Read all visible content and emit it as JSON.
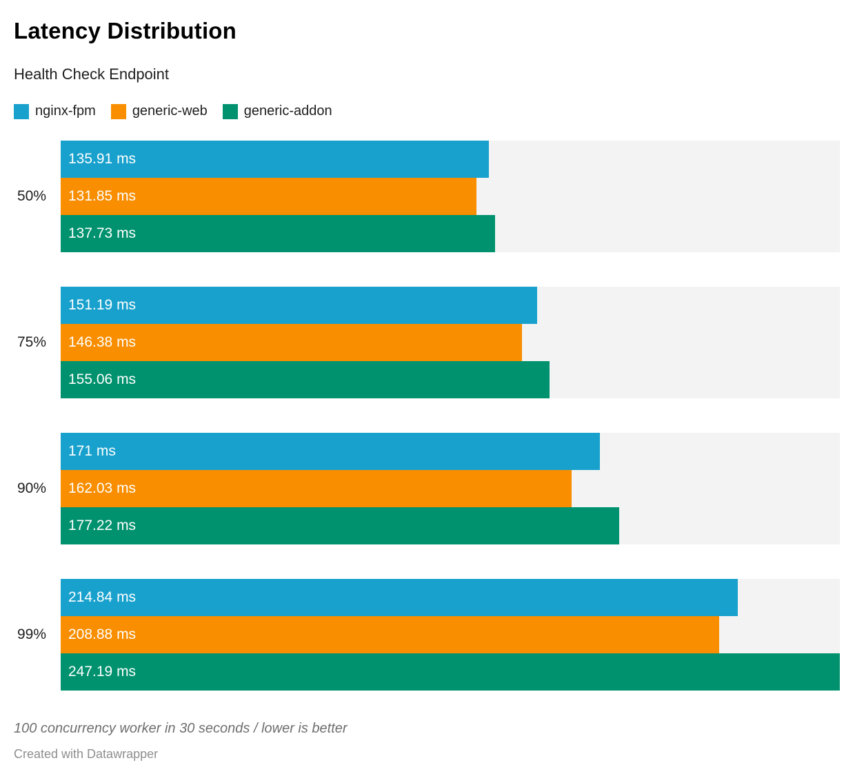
{
  "title": "Latency Distribution",
  "subtitle": "Health Check Endpoint",
  "legend": {
    "items": [
      {
        "label": "nginx-fpm",
        "color": "#18a1cd"
      },
      {
        "label": "generic-web",
        "color": "#f88e00"
      },
      {
        "label": "generic-addon",
        "color": "#00926e"
      }
    ]
  },
  "footer": {
    "note": "100 concurrency worker in 30 seconds / lower is better",
    "attribution": "Created with Datawrapper"
  },
  "chart_data": {
    "type": "bar",
    "orientation": "horizontal",
    "unit": "ms",
    "title": "Latency Distribution",
    "subtitle": "Health Check Endpoint",
    "categories": [
      "50%",
      "75%",
      "90%",
      "99%"
    ],
    "series": [
      {
        "name": "nginx-fpm",
        "color": "#18a1cd",
        "values": [
          135.91,
          151.19,
          171,
          214.84
        ],
        "labels": [
          "135.91 ms",
          "151.19 ms",
          "171 ms",
          "214.84 ms"
        ]
      },
      {
        "name": "generic-web",
        "color": "#f88e00",
        "values": [
          131.85,
          146.38,
          162.03,
          208.88
        ],
        "labels": [
          "131.85 ms",
          "146.38 ms",
          "162.03 ms",
          "208.88 ms"
        ]
      },
      {
        "name": "generic-addon",
        "color": "#00926e",
        "values": [
          137.73,
          155.06,
          177.22,
          247.19
        ],
        "labels": [
          "137.73 ms",
          "155.06 ms",
          "177.22 ms",
          "247.19 ms"
        ]
      }
    ],
    "xlim": [
      0,
      247.19
    ],
    "grid": false,
    "legend_position": "top",
    "track_color": "#f3f3f3",
    "value_label_color": "#ffffff"
  }
}
